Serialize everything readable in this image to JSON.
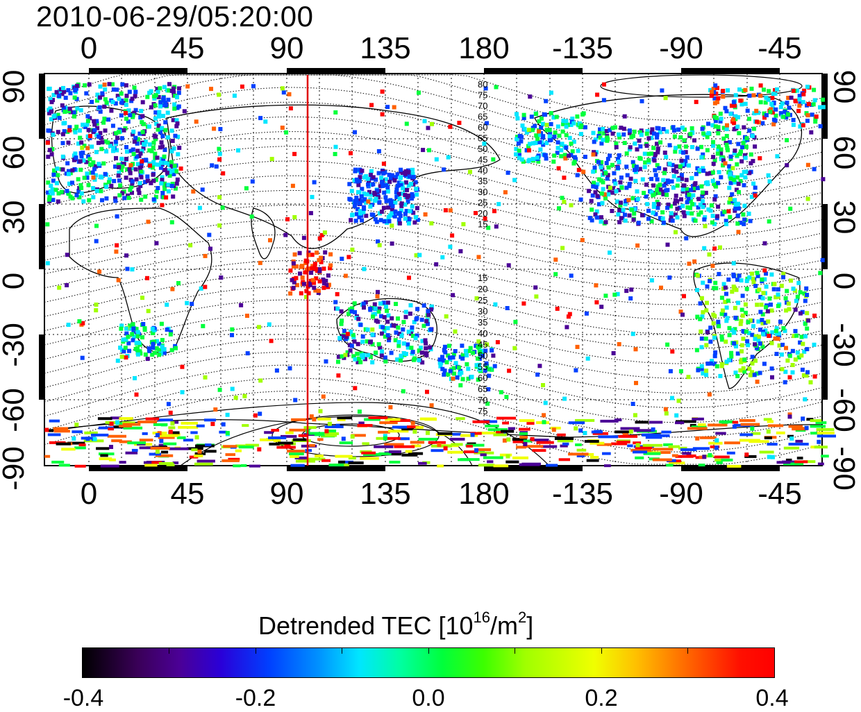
{
  "timestamp": "2010-06-29/05:20:00",
  "map": {
    "type": "world map, equirectangular, centered near 100E",
    "lon_tick_labels": [
      "0",
      "45",
      "90",
      "135",
      "180",
      "-135",
      "-90",
      "-45"
    ],
    "lat_tick_labels_left": [
      "90",
      "60",
      "30",
      "0",
      "-30",
      "-60",
      "-90"
    ],
    "lat_tick_labels_right": [
      "90",
      "60",
      "30",
      "0",
      "-30",
      "-60",
      "-90"
    ],
    "terminator_line_color": "#e00000",
    "contour_labels_north": [
      "80",
      "75",
      "70",
      "65",
      "60",
      "55",
      "50",
      "45",
      "40",
      "35",
      "30",
      "25",
      "20",
      "15"
    ],
    "contour_labels_south": [
      "15",
      "20",
      "25",
      "30",
      "35",
      "40",
      "45",
      "50",
      "55",
      "60",
      "65",
      "70",
      "75"
    ]
  },
  "colorbar": {
    "title_main": "Detrended TEC  [10",
    "title_exp": "16",
    "title_mid": "/m",
    "title_exp2": "2",
    "title_end": "]",
    "tick_labels": [
      "-0.4",
      "-0.2",
      "0.0",
      "0.2",
      "0.4"
    ],
    "range": [
      -0.4,
      0.4
    ],
    "colormap_stops": [
      "#000000",
      "#4b0096",
      "#0040ff",
      "#00e6ff",
      "#00ff3c",
      "#a0ff00",
      "#f0ff00",
      "#ff6000",
      "#ff0000"
    ]
  }
}
